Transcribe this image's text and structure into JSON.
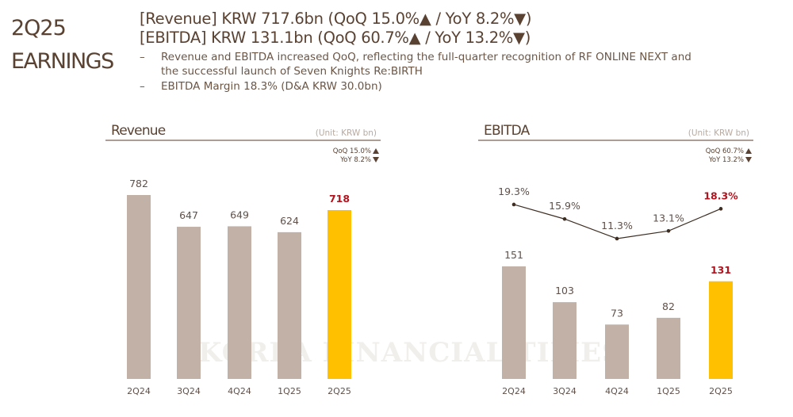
{
  "slide": {
    "title_line1": "2Q25",
    "title_line2": "EARNINGS",
    "headline_revenue": "[Revenue] KRW 717.6bn (QoQ 15.0%▲ / YoY 8.2%▼)",
    "headline_ebitda": "[EBITDA] KRW 131.1bn (QoQ 60.7%▲ / YoY 13.2%▼)",
    "bullet_dash": "–",
    "bullet1_line1": "Revenue and EBITDA increased QoQ, reflecting the full-quarter recognition of RF ONLINE NEXT and",
    "bullet1_line2": "the successful launch of Seven Knights Re:BIRTH",
    "bullet2": "EBITDA Margin 18.3% (D&A KRW 30.0bn)",
    "watermark": "KOREA FINANCIAL TIMES"
  },
  "colors": {
    "text": "#5a4232",
    "bar": "#c2b1a6",
    "highlight_bar": "#ffc000",
    "highlight_text": "#b0151f",
    "line": "#3d2d22"
  },
  "chart_data": [
    {
      "type": "bar",
      "title": "Revenue",
      "unit": "(Unit: KRW bn)",
      "qoq": "QoQ 15.0%▲",
      "yoy": "YoY 8.2%▼",
      "categories": [
        "2Q24",
        "3Q24",
        "4Q24",
        "1Q25",
        "2Q25"
      ],
      "values": [
        782,
        647,
        649,
        624,
        718
      ],
      "highlight_index": 4,
      "ylim": [
        0,
        782
      ]
    },
    {
      "type": "bar+line",
      "title": "EBITDA",
      "unit": "(Unit: KRW bn)",
      "qoq": "QoQ 60.7%▲",
      "yoy": "YoY 13.2%▼",
      "categories": [
        "2Q24",
        "3Q24",
        "4Q24",
        "1Q25",
        "2Q25"
      ],
      "values": [
        151,
        103,
        73,
        82,
        131
      ],
      "margin_series": {
        "name": "EBITDA Margin",
        "values": [
          19.3,
          15.9,
          11.3,
          13.1,
          18.3
        ],
        "labels": [
          "19.3%",
          "15.9%",
          "11.3%",
          "13.1%",
          "18.3%"
        ]
      },
      "highlight_index": 4
    }
  ]
}
